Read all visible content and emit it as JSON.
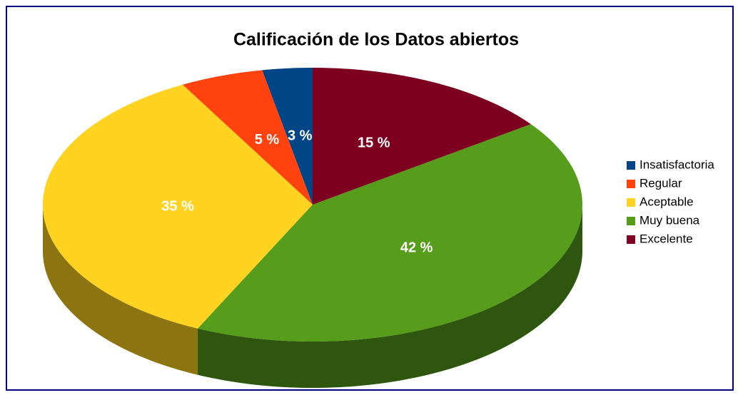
{
  "chart_data": {
    "type": "pie",
    "title": "Calificación de los Datos abiertos",
    "categories": [
      "Insatisfactoria",
      "Regular",
      "Aceptable",
      "Muy buena",
      "Excelente"
    ],
    "values": [
      3,
      5,
      35,
      42,
      15
    ],
    "value_labels": [
      "3 %",
      "5 %",
      "35 %",
      "42 %",
      "15 %"
    ],
    "colors": [
      "#004586",
      "#ff420e",
      "#ffd320",
      "#579d1c",
      "#7e0021"
    ],
    "legend": "right"
  }
}
